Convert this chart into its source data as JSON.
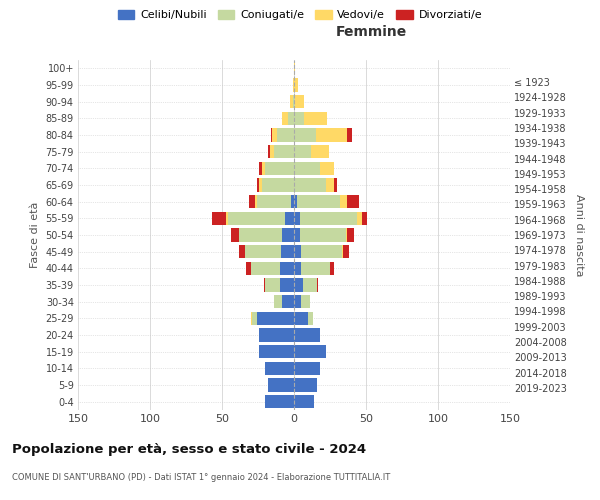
{
  "age_groups": [
    "0-4",
    "5-9",
    "10-14",
    "15-19",
    "20-24",
    "25-29",
    "30-34",
    "35-39",
    "40-44",
    "45-49",
    "50-54",
    "55-59",
    "60-64",
    "65-69",
    "70-74",
    "75-79",
    "80-84",
    "85-89",
    "90-94",
    "95-99",
    "100+"
  ],
  "birth_years": [
    "2019-2023",
    "2014-2018",
    "2009-2013",
    "2004-2008",
    "1999-2003",
    "1994-1998",
    "1989-1993",
    "1984-1988",
    "1979-1983",
    "1974-1978",
    "1969-1973",
    "1964-1968",
    "1959-1963",
    "1954-1958",
    "1949-1953",
    "1944-1948",
    "1939-1943",
    "1934-1938",
    "1929-1933",
    "1924-1928",
    "≤ 1923"
  ],
  "male": {
    "celibi": [
      20,
      18,
      20,
      24,
      24,
      26,
      8,
      10,
      10,
      9,
      8,
      6,
      2,
      0,
      0,
      0,
      0,
      0,
      0,
      0,
      0
    ],
    "coniugati": [
      0,
      0,
      0,
      0,
      0,
      3,
      6,
      10,
      20,
      25,
      30,
      40,
      24,
      22,
      20,
      14,
      12,
      4,
      1,
      0,
      0
    ],
    "vedovi": [
      0,
      0,
      0,
      0,
      0,
      1,
      0,
      0,
      0,
      0,
      0,
      1,
      1,
      2,
      2,
      3,
      3,
      4,
      2,
      1,
      0
    ],
    "divorziati": [
      0,
      0,
      0,
      0,
      0,
      0,
      0,
      1,
      3,
      4,
      6,
      10,
      4,
      2,
      2,
      1,
      1,
      0,
      0,
      0,
      0
    ]
  },
  "female": {
    "nubili": [
      14,
      16,
      18,
      22,
      18,
      10,
      5,
      6,
      5,
      5,
      4,
      4,
      2,
      0,
      0,
      0,
      0,
      0,
      0,
      0,
      0
    ],
    "coniugate": [
      0,
      0,
      0,
      0,
      0,
      3,
      6,
      10,
      20,
      28,
      32,
      40,
      30,
      22,
      18,
      12,
      15,
      7,
      1,
      0,
      0
    ],
    "vedove": [
      0,
      0,
      0,
      0,
      0,
      0,
      0,
      0,
      0,
      1,
      1,
      3,
      5,
      6,
      10,
      12,
      22,
      16,
      6,
      3,
      1
    ],
    "divorziate": [
      0,
      0,
      0,
      0,
      0,
      0,
      0,
      1,
      3,
      4,
      5,
      4,
      8,
      2,
      0,
      0,
      3,
      0,
      0,
      0,
      0
    ]
  },
  "colors": {
    "celibi": "#4472c4",
    "coniugati": "#c5d9a0",
    "vedovi": "#ffd966",
    "divorziati": "#cc2222"
  },
  "xlim": 150,
  "title": "Popolazione per età, sesso e stato civile - 2024",
  "subtitle": "COMUNE DI SANT'URBANO (PD) - Dati ISTAT 1° gennaio 2024 - Elaborazione TUTTITALIA.IT",
  "legend_labels": [
    "Celibi/Nubili",
    "Coniugati/e",
    "Vedovi/e",
    "Divorziati/e"
  ],
  "xlabel_right": "Femmine",
  "ylabel_left": "Fasce di età",
  "ylabel_right": "Anni di nascita"
}
